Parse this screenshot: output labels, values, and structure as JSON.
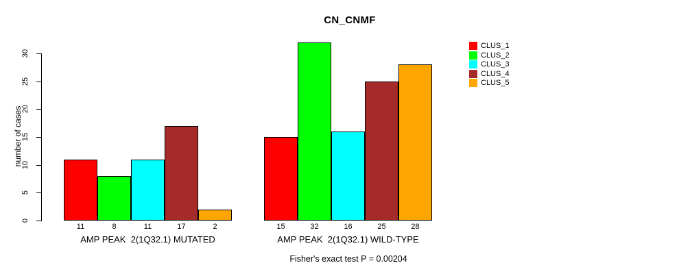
{
  "chart_data": {
    "type": "bar",
    "title": "CN_CNMF",
    "ylabel": "number of cases",
    "ylim": [
      0,
      30
    ],
    "yticks": [
      0,
      5,
      10,
      15,
      20,
      25,
      30
    ],
    "grid": false,
    "legend_position": "right-outside",
    "categories": [
      "AMP PEAK  2(1Q32.1) MUTATED",
      "AMP PEAK  2(1Q32.1) WILD-TYPE"
    ],
    "series": [
      {
        "name": "CLUS_1",
        "color": "#FF0000",
        "values": [
          11,
          15
        ]
      },
      {
        "name": "CLUS_2",
        "color": "#00FF00",
        "values": [
          8,
          32
        ]
      },
      {
        "name": "CLUS_3",
        "color": "#00FFFF",
        "values": [
          11,
          16
        ]
      },
      {
        "name": "CLUS_4",
        "color": "#A52A2A",
        "values": [
          17,
          25
        ]
      },
      {
        "name": "CLUS_5",
        "color": "#FFA500",
        "values": [
          2,
          28
        ]
      }
    ],
    "bar_value_labels": [
      [
        11,
        8,
        11,
        17,
        2
      ],
      [
        15,
        32,
        16,
        25,
        28
      ]
    ],
    "annotation": "Fisher's exact test P = 0.00204"
  }
}
